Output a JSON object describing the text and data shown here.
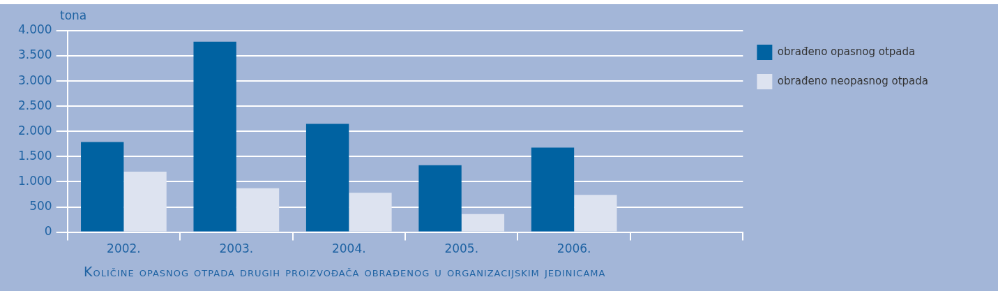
{
  "chart_data": {
    "type": "bar",
    "title": "Količine opasnog otpada drugih proizvođača obrađenog u organizacijskim jedinicama",
    "ylabel": "tona",
    "categories": [
      "2002.",
      "2003.",
      "2004.",
      "2005.",
      "2006.",
      null
    ],
    "series": [
      {
        "name": "obrađeno opasnog otpada",
        "color": "#0062a1",
        "values": [
          1790,
          3780,
          2150,
          1330,
          1680,
          null
        ]
      },
      {
        "name": "obrađeno neopasnog otpada",
        "color": "#dde3f0",
        "values": [
          1200,
          870,
          780,
          360,
          740,
          null
        ]
      }
    ],
    "ylim": [
      0,
      4000
    ],
    "yticks": [
      0,
      {
        "value": 500,
        "label": "500"
      },
      {
        "value": 1000,
        "label": "1.000"
      },
      {
        "value": 1500,
        "label": "1.500"
      },
      {
        "value": 2000,
        "label": "2.000"
      },
      {
        "value": 2500,
        "label": "2.500"
      },
      {
        "value": 3000,
        "label": "3.000"
      },
      {
        "value": 3500,
        "label": "3.500"
      },
      {
        "value": 4000,
        "label": "4.000"
      }
    ],
    "grid": "y",
    "legend": "top right"
  }
}
